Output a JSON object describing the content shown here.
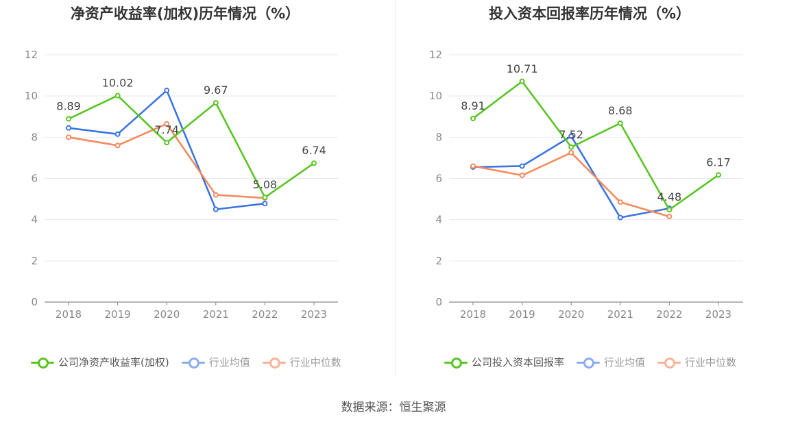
{
  "source": "数据来源：恒生聚源",
  "colors": {
    "company": "#5ac423",
    "avg": "#3b74e0",
    "median": "#f48a5e",
    "avg_legend": "#8cabf0",
    "median_legend": "#f7b39a"
  },
  "chart_data": [
    {
      "type": "line",
      "title": "净资产收益率(加权)历年情况（%）",
      "categories": [
        "2018",
        "2019",
        "2020",
        "2021",
        "2022",
        "2023"
      ],
      "ylim": [
        0,
        12
      ],
      "yticks": [
        0,
        2,
        4,
        6,
        8,
        10,
        12
      ],
      "grid": true,
      "legend_position": "bottom",
      "series": [
        {
          "name": "公司净资产收益率(加权)",
          "values": [
            8.89,
            10.02,
            7.74,
            9.67,
            5.08,
            6.74
          ],
          "labels": [
            "8.89",
            "10.02",
            "7.74",
            "9.67",
            "5.08",
            "6.74"
          ]
        },
        {
          "name": "行业均值",
          "values": [
            8.45,
            8.15,
            10.27,
            4.5,
            4.78,
            null
          ]
        },
        {
          "name": "行业中位数",
          "values": [
            8.0,
            7.6,
            8.65,
            5.2,
            5.05,
            null
          ]
        }
      ]
    },
    {
      "type": "line",
      "title": "投入资本回报率历年情况（%）",
      "categories": [
        "2018",
        "2019",
        "2020",
        "2021",
        "2022",
        "2023"
      ],
      "ylim": [
        0,
        12
      ],
      "yticks": [
        0,
        2,
        4,
        6,
        8,
        10,
        12
      ],
      "grid": true,
      "legend_position": "bottom",
      "series": [
        {
          "name": "公司投入资本回报率",
          "values": [
            8.91,
            10.71,
            7.52,
            8.68,
            4.48,
            6.17
          ],
          "labels": [
            "8.91",
            "10.71",
            "7.52",
            "8.68",
            "4.48",
            "6.17"
          ]
        },
        {
          "name": "行业均值",
          "values": [
            6.55,
            6.6,
            8.05,
            4.1,
            4.55,
            null
          ]
        },
        {
          "name": "行业中位数",
          "values": [
            6.6,
            6.15,
            7.25,
            4.85,
            4.15,
            null
          ]
        }
      ]
    }
  ]
}
